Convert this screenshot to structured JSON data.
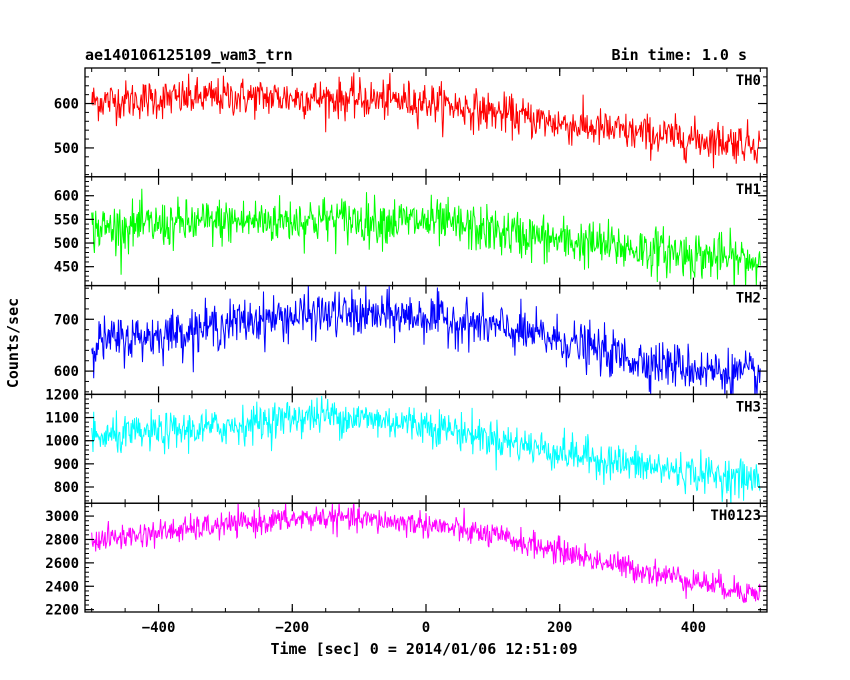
{
  "header": {
    "title": "ae140106125109_wam3_trn",
    "bin_time": "Bin time: 1.0 s"
  },
  "chart_data": {
    "type": "line",
    "xlabel": "Time [sec] 0 = 2014/01/06 12:51:09",
    "ylabel": "Counts/sec",
    "xlim": [
      -510,
      510
    ],
    "x_ticks": [
      -400,
      -200,
      0,
      200,
      400
    ],
    "x_tick_labels": [
      "−400",
      "−200",
      "0",
      "200",
      "400"
    ],
    "x_range_data": [
      -500,
      500
    ],
    "x_step": 1,
    "panels": [
      {
        "name": "TH0",
        "color": "#ff0000",
        "ylim": [
          435,
          680
        ],
        "yticks": [
          500,
          600
        ],
        "noise": 22,
        "trend": [
          [
            -500,
            605
          ],
          [
            -300,
            615
          ],
          [
            -150,
            612
          ],
          [
            0,
            605
          ],
          [
            100,
            580
          ],
          [
            200,
            555
          ],
          [
            300,
            535
          ],
          [
            400,
            520
          ],
          [
            500,
            510
          ]
        ]
      },
      {
        "name": "TH1",
        "color": "#00ff00",
        "ylim": [
          410,
          640
        ],
        "yticks": [
          450,
          500,
          550,
          600
        ],
        "noise": 25,
        "trend": [
          [
            -500,
            530
          ],
          [
            -300,
            545
          ],
          [
            -150,
            550
          ],
          [
            0,
            545
          ],
          [
            100,
            525
          ],
          [
            200,
            505
          ],
          [
            300,
            490
          ],
          [
            400,
            475
          ],
          [
            500,
            460
          ]
        ]
      },
      {
        "name": "TH2",
        "color": "#0000ff",
        "ylim": [
          555,
          765
        ],
        "yticks": [
          600,
          700
        ],
        "noise": 22,
        "trend": [
          [
            -500,
            655
          ],
          [
            -400,
            670
          ],
          [
            -250,
            700
          ],
          [
            -150,
            710
          ],
          [
            0,
            705
          ],
          [
            100,
            685
          ],
          [
            200,
            660
          ],
          [
            300,
            625
          ],
          [
            400,
            605
          ],
          [
            500,
            590
          ]
        ]
      },
      {
        "name": "TH3",
        "color": "#00ffff",
        "ylim": [
          730,
          1200
        ],
        "yticks": [
          800,
          900,
          1000,
          1100,
          1200
        ],
        "noise": 40,
        "trend": [
          [
            -500,
            1010
          ],
          [
            -300,
            1060
          ],
          [
            -200,
            1100
          ],
          [
            -150,
            1110
          ],
          [
            0,
            1070
          ],
          [
            100,
            1010
          ],
          [
            200,
            950
          ],
          [
            300,
            900
          ],
          [
            400,
            860
          ],
          [
            500,
            830
          ]
        ]
      },
      {
        "name": "TH0123",
        "color": "#ff00ff",
        "ylim": [
          2180,
          3110
        ],
        "yticks": [
          2200,
          2400,
          2600,
          2800,
          3000
        ],
        "noise": 55,
        "trend": [
          [
            -500,
            2790
          ],
          [
            -400,
            2860
          ],
          [
            -250,
            2950
          ],
          [
            -150,
            2990
          ],
          [
            0,
            2930
          ],
          [
            100,
            2830
          ],
          [
            200,
            2700
          ],
          [
            300,
            2560
          ],
          [
            400,
            2450
          ],
          [
            500,
            2330
          ]
        ]
      }
    ]
  }
}
